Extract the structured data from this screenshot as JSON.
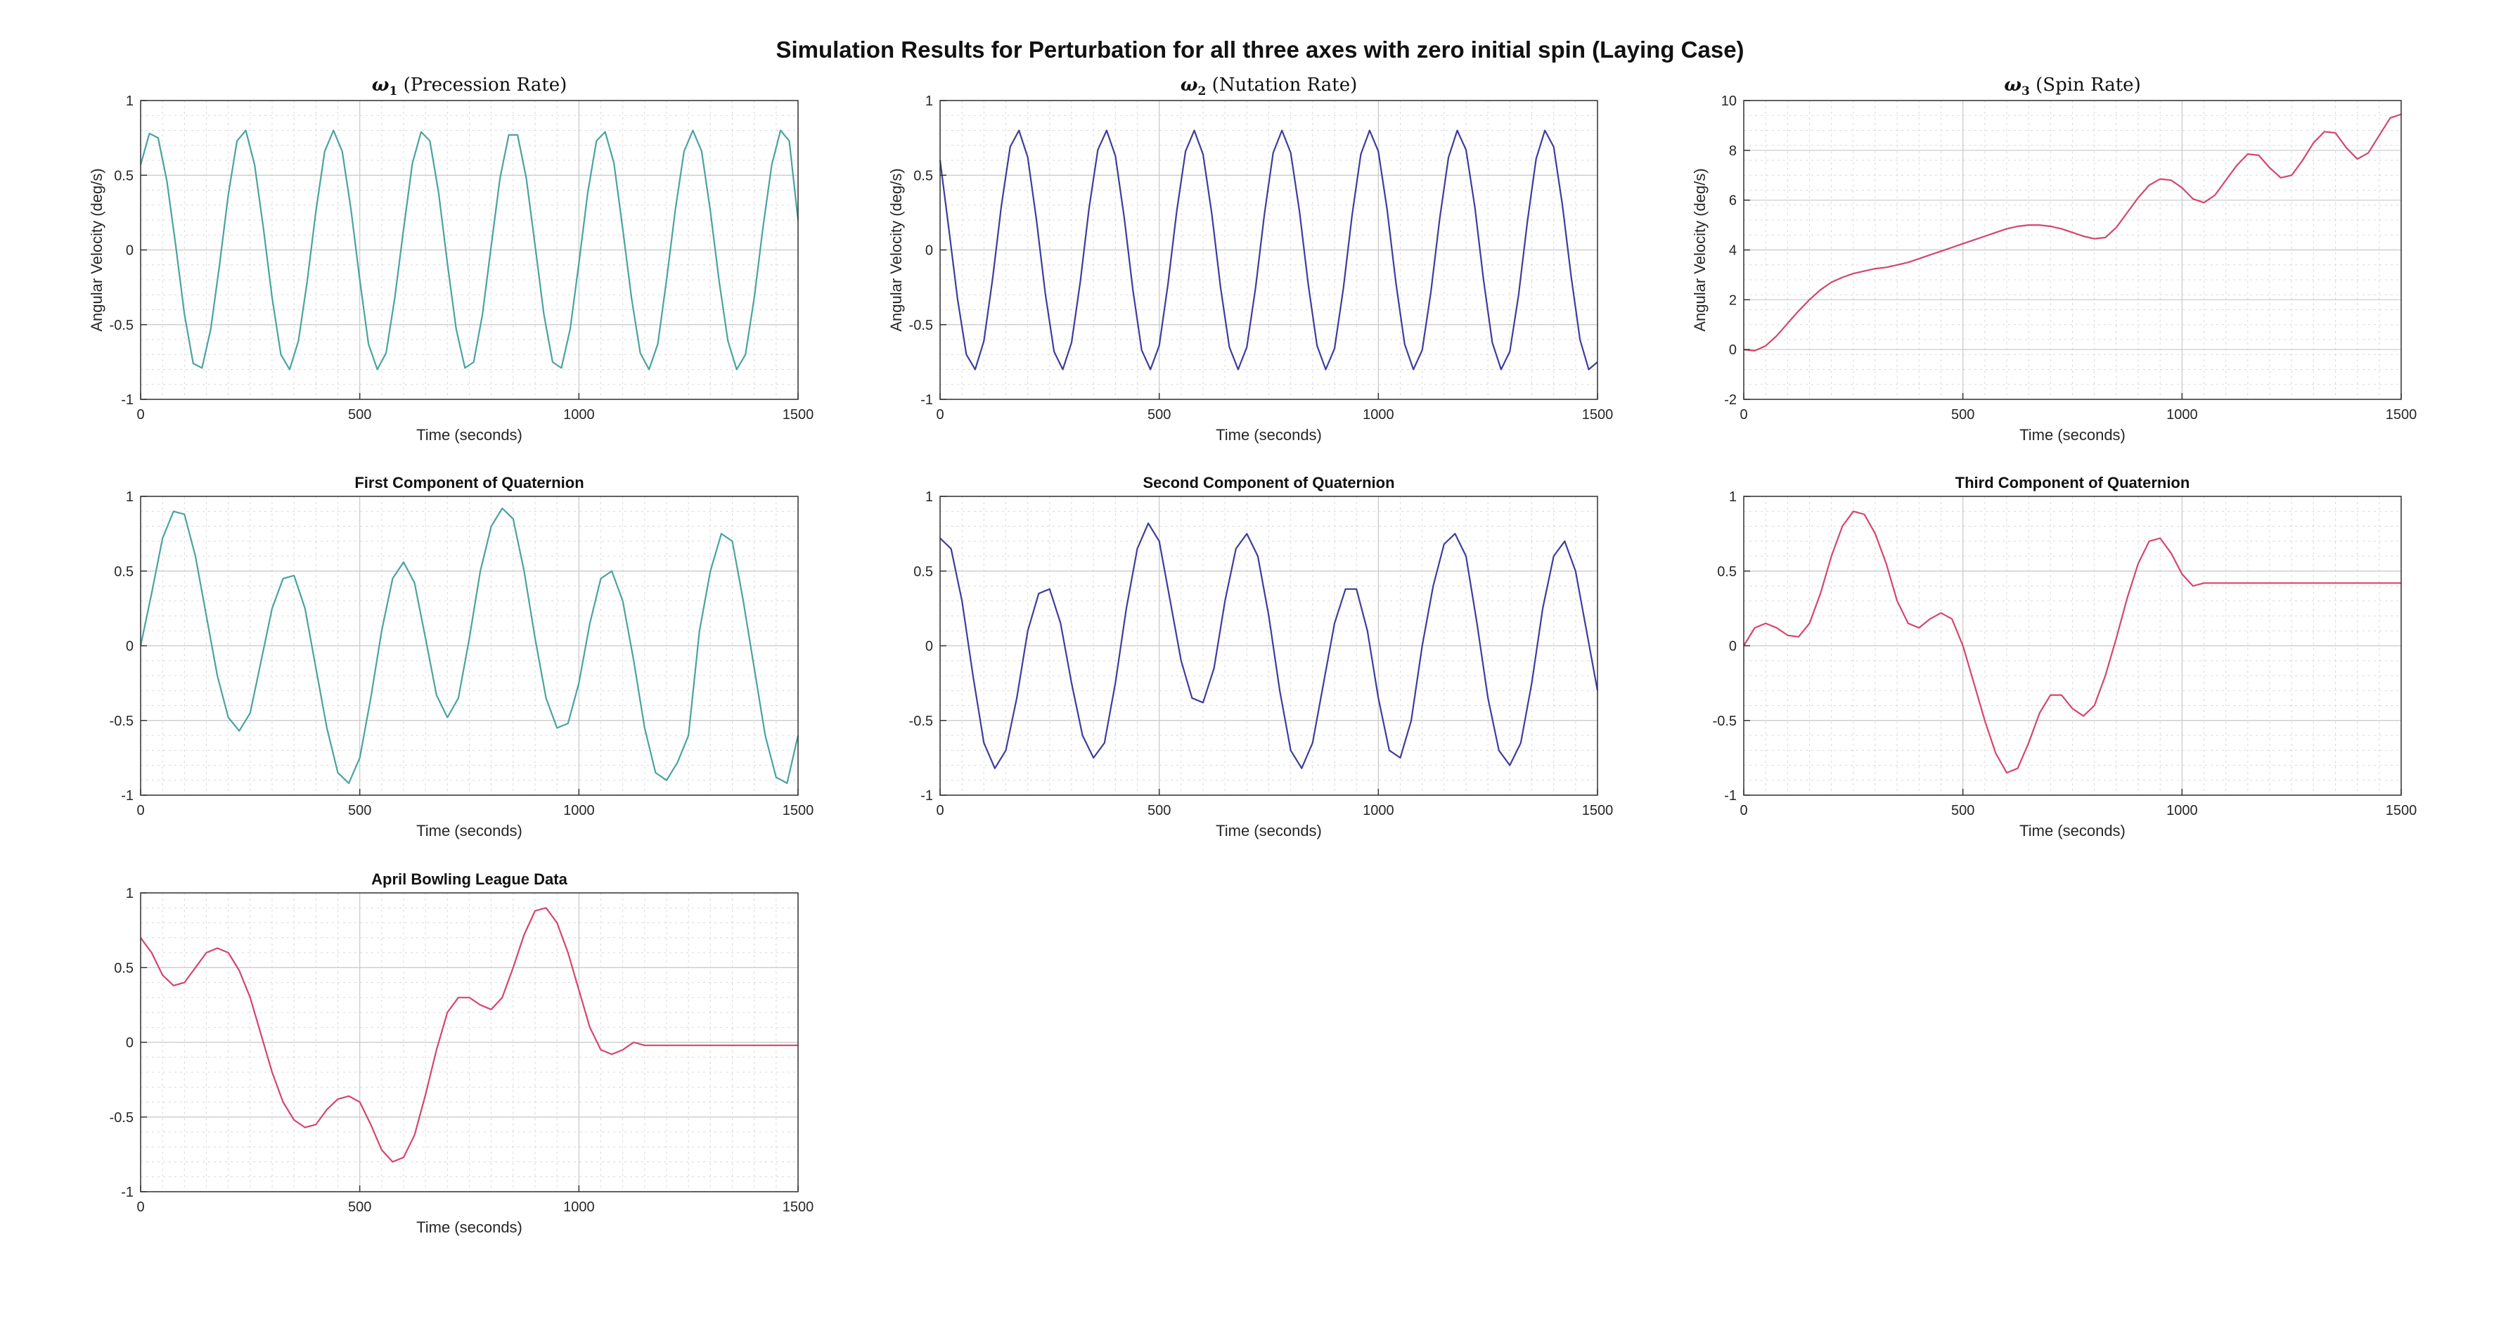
{
  "figure": {
    "suptitle": "Simulation Results for Perturbation for all three axes with zero initial spin (Laying Case)"
  },
  "colors": {
    "teal": "#4aa3a0",
    "navy": "#3d3d9e",
    "crimson": "#d4466d",
    "grid": "#d9d9d9",
    "axes": "#333333"
  },
  "chart_data": [
    {
      "id": "w1",
      "type": "line",
      "title_symbol": "ω",
      "title_sub": "1",
      "title_rest": " (Precession Rate)",
      "xlabel": "Time (seconds)",
      "ylabel": "Angular Velocity (deg/s)",
      "xlim": [
        0,
        1500
      ],
      "ylim": [
        -1,
        1
      ],
      "xticks": [
        0,
        500,
        1000,
        1500
      ],
      "yticks": [
        -1,
        -0.5,
        0,
        0.5,
        1
      ],
      "grid": true,
      "color": "#4aa3a0",
      "x": [
        0,
        20,
        40,
        60,
        80,
        100,
        120,
        140,
        160,
        180,
        200,
        220,
        240,
        260,
        280,
        300,
        320,
        340,
        360,
        380,
        400,
        420,
        440,
        460,
        480,
        500,
        520,
        540,
        560,
        580,
        600,
        620,
        640,
        660,
        680,
        700,
        720,
        740,
        760,
        780,
        800,
        820,
        840,
        860,
        880,
        900,
        920,
        940,
        960,
        980,
        1000,
        1020,
        1040,
        1060,
        1080,
        1100,
        1120,
        1140,
        1160,
        1180,
        1200,
        1220,
        1240,
        1260,
        1280,
        1300,
        1320,
        1340,
        1360,
        1380,
        1400,
        1420,
        1440,
        1460,
        1480,
        1500
      ],
      "y": [
        0.57,
        0.78,
        0.75,
        0.46,
        0.03,
        -0.43,
        -0.76,
        -0.79,
        -0.53,
        -0.1,
        0.37,
        0.73,
        0.8,
        0.57,
        0.15,
        -0.32,
        -0.7,
        -0.8,
        -0.61,
        -0.21,
        0.26,
        0.66,
        0.8,
        0.66,
        0.27,
        -0.2,
        -0.63,
        -0.8,
        -0.69,
        -0.32,
        0.14,
        0.58,
        0.79,
        0.73,
        0.38,
        -0.09,
        -0.53,
        -0.79,
        -0.75,
        -0.43,
        0.03,
        0.48,
        0.77,
        0.77,
        0.48,
        0.03,
        -0.43,
        -0.75,
        -0.79,
        -0.53,
        -0.09,
        0.38,
        0.73,
        0.79,
        0.58,
        0.14,
        -0.32,
        -0.69,
        -0.8,
        -0.63,
        -0.2,
        0.27,
        0.66,
        0.8,
        0.66,
        0.26,
        -0.21,
        -0.61,
        -0.8,
        -0.7,
        -0.32,
        0.15,
        0.57,
        0.8,
        0.73,
        0.2
      ]
    },
    {
      "id": "w2",
      "type": "line",
      "title_symbol": "ω",
      "title_sub": "2",
      "title_rest": " (Nutation Rate)",
      "xlabel": "Time (seconds)",
      "ylabel": "Angular Velocity (deg/s)",
      "xlim": [
        0,
        1500
      ],
      "ylim": [
        -1,
        1
      ],
      "xticks": [
        0,
        500,
        1000,
        1500
      ],
      "yticks": [
        -1,
        -0.5,
        0,
        0.5,
        1
      ],
      "grid": true,
      "color": "#3d3d9e",
      "x": [
        0,
        20,
        40,
        60,
        80,
        100,
        120,
        140,
        160,
        180,
        200,
        220,
        240,
        260,
        280,
        300,
        320,
        340,
        360,
        380,
        400,
        420,
        440,
        460,
        480,
        500,
        520,
        540,
        560,
        580,
        600,
        620,
        640,
        660,
        680,
        700,
        720,
        740,
        760,
        780,
        800,
        820,
        840,
        860,
        880,
        900,
        920,
        940,
        960,
        980,
        1000,
        1020,
        1040,
        1060,
        1080,
        1100,
        1120,
        1140,
        1160,
        1180,
        1200,
        1220,
        1240,
        1260,
        1280,
        1300,
        1320,
        1340,
        1360,
        1380,
        1400,
        1420,
        1440,
        1460,
        1480,
        1500
      ],
      "y": [
        0.6,
        0.14,
        -0.33,
        -0.7,
        -0.8,
        -0.61,
        -0.19,
        0.3,
        0.69,
        0.8,
        0.62,
        0.2,
        -0.29,
        -0.68,
        -0.8,
        -0.62,
        -0.21,
        0.28,
        0.67,
        0.8,
        0.63,
        0.22,
        -0.27,
        -0.67,
        -0.8,
        -0.64,
        -0.23,
        0.26,
        0.66,
        0.8,
        0.64,
        0.24,
        -0.25,
        -0.65,
        -0.8,
        -0.65,
        -0.25,
        0.24,
        0.65,
        0.8,
        0.65,
        0.26,
        -0.23,
        -0.64,
        -0.8,
        -0.66,
        -0.26,
        0.23,
        0.64,
        0.8,
        0.66,
        0.27,
        -0.22,
        -0.63,
        -0.8,
        -0.67,
        -0.28,
        0.21,
        0.62,
        0.8,
        0.67,
        0.29,
        -0.2,
        -0.62,
        -0.8,
        -0.68,
        -0.3,
        0.19,
        0.61,
        0.8,
        0.69,
        0.3,
        -0.18,
        -0.6,
        -0.8,
        -0.75
      ]
    },
    {
      "id": "w3",
      "type": "line",
      "title_symbol": "ω",
      "title_sub": "3",
      "title_rest": " (Spin Rate)",
      "xlabel": "Time (seconds)",
      "ylabel": "Angular Velocity (deg/s)",
      "xlim": [
        0,
        1500
      ],
      "ylim": [
        -2,
        10
      ],
      "xticks": [
        0,
        500,
        1000,
        1500
      ],
      "yticks": [
        -2,
        0,
        2,
        4,
        6,
        8,
        10
      ],
      "grid": true,
      "color": "#d4466d",
      "x": [
        0,
        25,
        50,
        75,
        100,
        125,
        150,
        175,
        200,
        225,
        250,
        275,
        300,
        325,
        350,
        375,
        400,
        425,
        450,
        475,
        500,
        525,
        550,
        575,
        600,
        625,
        650,
        675,
        700,
        725,
        750,
        775,
        800,
        825,
        850,
        875,
        900,
        925,
        950,
        975,
        1000,
        1025,
        1050,
        1075,
        1100,
        1125,
        1150,
        1175,
        1200,
        1225,
        1250,
        1275,
        1300,
        1325,
        1350,
        1375,
        1400,
        1425,
        1450,
        1475,
        1500
      ],
      "y": [
        0,
        -0.05,
        0.15,
        0.55,
        1.05,
        1.55,
        2.0,
        2.4,
        2.7,
        2.9,
        3.05,
        3.15,
        3.25,
        3.3,
        3.4,
        3.5,
        3.65,
        3.8,
        3.95,
        4.1,
        4.25,
        4.4,
        4.55,
        4.7,
        4.85,
        4.95,
        5.0,
        5.0,
        4.95,
        4.85,
        4.7,
        4.55,
        4.45,
        4.5,
        4.9,
        5.5,
        6.1,
        6.6,
        6.85,
        6.8,
        6.5,
        6.05,
        5.9,
        6.2,
        6.8,
        7.4,
        7.85,
        7.8,
        7.3,
        6.9,
        7.0,
        7.6,
        8.3,
        8.75,
        8.7,
        8.1,
        7.65,
        7.9,
        8.6,
        9.3,
        9.45
      ]
    },
    {
      "id": "q1",
      "type": "line",
      "title": "First Component of Quaternion",
      "xlabel": "Time (seconds)",
      "xlim": [
        0,
        1500
      ],
      "ylim": [
        -1,
        1
      ],
      "xticks": [
        0,
        500,
        1000,
        1500
      ],
      "yticks": [
        -1,
        -0.5,
        0,
        0.5,
        1
      ],
      "grid": true,
      "color": "#4aa3a0",
      "x": [
        0,
        25,
        50,
        75,
        100,
        125,
        150,
        175,
        200,
        225,
        250,
        275,
        300,
        325,
        350,
        375,
        400,
        425,
        450,
        475,
        500,
        525,
        550,
        575,
        600,
        625,
        650,
        675,
        700,
        725,
        750,
        775,
        800,
        825,
        850,
        875,
        900,
        925,
        950,
        975,
        1000,
        1025,
        1050,
        1075,
        1100,
        1125,
        1150,
        1175,
        1200,
        1225,
        1250,
        1275,
        1300,
        1325,
        1350,
        1375,
        1400,
        1425,
        1450,
        1475,
        1500
      ],
      "y": [
        0,
        0.35,
        0.72,
        0.9,
        0.88,
        0.6,
        0.2,
        -0.2,
        -0.48,
        -0.57,
        -0.45,
        -0.1,
        0.25,
        0.45,
        0.47,
        0.25,
        -0.15,
        -0.55,
        -0.85,
        -0.92,
        -0.75,
        -0.35,
        0.1,
        0.45,
        0.56,
        0.42,
        0.05,
        -0.33,
        -0.48,
        -0.35,
        0.05,
        0.5,
        0.8,
        0.92,
        0.85,
        0.5,
        0.05,
        -0.35,
        -0.55,
        -0.52,
        -0.25,
        0.15,
        0.45,
        0.5,
        0.3,
        -0.1,
        -0.55,
        -0.85,
        -0.9,
        -0.78,
        -0.6,
        0.1,
        0.5,
        0.75,
        0.7,
        0.3,
        -0.15,
        -0.6,
        -0.88,
        -0.92,
        -0.6
      ]
    },
    {
      "id": "q2",
      "type": "line",
      "title": "Second Component of Quaternion",
      "xlabel": "Time (seconds)",
      "xlim": [
        0,
        1500
      ],
      "ylim": [
        -1,
        1
      ],
      "xticks": [
        0,
        500,
        1000,
        1500
      ],
      "yticks": [
        -1,
        -0.5,
        0,
        0.5,
        1
      ],
      "grid": true,
      "color": "#3d3d9e",
      "x": [
        0,
        25,
        50,
        75,
        100,
        125,
        150,
        175,
        200,
        225,
        250,
        275,
        300,
        325,
        350,
        375,
        400,
        425,
        450,
        475,
        500,
        525,
        550,
        575,
        600,
        625,
        650,
        675,
        700,
        725,
        750,
        775,
        800,
        825,
        850,
        875,
        900,
        925,
        950,
        975,
        1000,
        1025,
        1050,
        1075,
        1100,
        1125,
        1150,
        1175,
        1200,
        1225,
        1250,
        1275,
        1300,
        1325,
        1350,
        1375,
        1400,
        1425,
        1450,
        1475,
        1500
      ],
      "y": [
        0.72,
        0.65,
        0.3,
        -0.2,
        -0.65,
        -0.82,
        -0.7,
        -0.35,
        0.1,
        0.35,
        0.38,
        0.15,
        -0.25,
        -0.6,
        -0.75,
        -0.65,
        -0.25,
        0.25,
        0.65,
        0.82,
        0.7,
        0.3,
        -0.1,
        -0.35,
        -0.38,
        -0.15,
        0.3,
        0.65,
        0.75,
        0.6,
        0.2,
        -0.3,
        -0.7,
        -0.82,
        -0.65,
        -0.25,
        0.15,
        0.38,
        0.38,
        0.1,
        -0.35,
        -0.7,
        -0.75,
        -0.5,
        0.0,
        0.4,
        0.68,
        0.75,
        0.6,
        0.15,
        -0.35,
        -0.7,
        -0.8,
        -0.65,
        -0.25,
        0.25,
        0.6,
        0.7,
        0.5,
        0.1,
        -0.3
      ]
    },
    {
      "id": "q3",
      "type": "line",
      "title": "Third Component of Quaternion",
      "xlabel": "Time (seconds)",
      "xlim": [
        0,
        1500
      ],
      "ylim": [
        -1,
        1
      ],
      "xticks": [
        0,
        500,
        1000,
        1500
      ],
      "yticks": [
        -1,
        -0.5,
        0,
        0.5,
        1
      ],
      "grid": true,
      "color": "#d4466d",
      "x": [
        0,
        25,
        50,
        75,
        100,
        125,
        150,
        175,
        200,
        225,
        250,
        275,
        300,
        325,
        350,
        375,
        400,
        425,
        450,
        475,
        500,
        525,
        550,
        575,
        600,
        625,
        650,
        675,
        700,
        725,
        750,
        775,
        800,
        825,
        850,
        875,
        900,
        925,
        950,
        975,
        1000,
        1025,
        1050,
        1075,
        1100,
        1125,
        1150,
        1175,
        1200,
        1225,
        1250,
        1275,
        1300,
        1325,
        1350,
        1375,
        1400,
        1425,
        1450,
        1475,
        1500
      ],
      "y": [
        0,
        0.12,
        0.15,
        0.12,
        0.07,
        0.06,
        0.15,
        0.35,
        0.6,
        0.8,
        0.9,
        0.88,
        0.75,
        0.55,
        0.3,
        0.15,
        0.12,
        0.18,
        0.22,
        0.18,
        0.0,
        -0.25,
        -0.5,
        -0.72,
        -0.85,
        -0.82,
        -0.65,
        -0.45,
        -0.33,
        -0.33,
        -0.42,
        -0.47,
        -0.4,
        -0.2,
        0.05,
        0.32,
        0.55,
        0.7,
        0.72,
        0.62,
        0.48,
        0.4,
        0.42,
        0.42,
        0.42,
        0.42,
        0.42,
        0.42,
        0.42,
        0.42,
        0.42,
        0.42,
        0.42,
        0.42,
        0.42,
        0.42,
        0.42,
        0.42,
        0.42,
        0.42,
        0.42
      ]
    },
    {
      "id": "bowling",
      "type": "line",
      "title": "April Bowling League Data",
      "xlabel": "Time (seconds)",
      "xlim": [
        0,
        1500
      ],
      "ylim": [
        -1,
        1
      ],
      "xticks": [
        0,
        500,
        1000,
        1500
      ],
      "yticks": [
        -1,
        -0.5,
        0,
        0.5,
        1
      ],
      "grid": true,
      "color": "#d4466d",
      "x": [
        0,
        25,
        50,
        75,
        100,
        125,
        150,
        175,
        200,
        225,
        250,
        275,
        300,
        325,
        350,
        375,
        400,
        425,
        450,
        475,
        500,
        525,
        550,
        575,
        600,
        625,
        650,
        675,
        700,
        725,
        750,
        775,
        800,
        825,
        850,
        875,
        900,
        925,
        950,
        975,
        1000,
        1025,
        1050,
        1075,
        1100,
        1125,
        1150,
        1175,
        1200,
        1225,
        1250,
        1275,
        1300,
        1325,
        1350,
        1375,
        1400,
        1425,
        1450,
        1475,
        1500
      ],
      "y": [
        0.7,
        0.6,
        0.45,
        0.38,
        0.4,
        0.5,
        0.6,
        0.63,
        0.6,
        0.48,
        0.3,
        0.05,
        -0.2,
        -0.4,
        -0.52,
        -0.57,
        -0.55,
        -0.45,
        -0.38,
        -0.36,
        -0.4,
        -0.55,
        -0.72,
        -0.8,
        -0.77,
        -0.62,
        -0.35,
        -0.05,
        0.2,
        0.3,
        0.3,
        0.25,
        0.22,
        0.3,
        0.5,
        0.72,
        0.88,
        0.9,
        0.8,
        0.6,
        0.35,
        0.1,
        -0.05,
        -0.08,
        -0.05,
        0.0,
        -0.02,
        -0.02,
        -0.02,
        -0.02,
        -0.02,
        -0.02,
        -0.02,
        -0.02,
        -0.02,
        -0.02,
        -0.02,
        -0.02,
        -0.02,
        -0.02,
        -0.02
      ]
    }
  ]
}
